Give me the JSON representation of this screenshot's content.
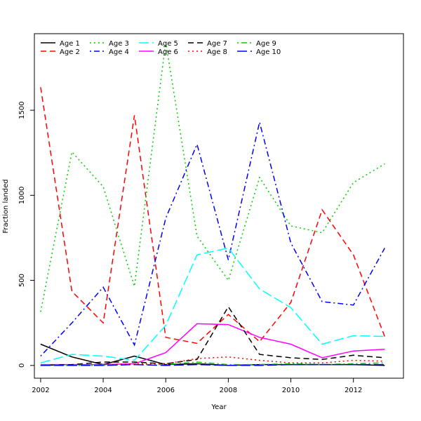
{
  "chart_data": {
    "type": "line",
    "title": "",
    "xlabel": "Year",
    "ylabel": "Fraction landed",
    "xlim": [
      2001.8,
      2013.6
    ],
    "ylim": [
      -75,
      1950
    ],
    "x_ticks": [
      2002,
      2004,
      2006,
      2008,
      2010,
      2012
    ],
    "y_ticks": [
      0,
      500,
      1000,
      1500
    ],
    "grid": false,
    "legend_position": "top-left",
    "x": [
      2002,
      2003,
      2004,
      2005,
      2006,
      2007,
      2008,
      2009,
      2010,
      2011,
      2012,
      2013
    ],
    "series": [
      {
        "name": "Age 1",
        "color": "#000000",
        "dash": "solid",
        "values": [
          125,
          50,
          5,
          55,
          5,
          10,
          0,
          5,
          5,
          5,
          5,
          0
        ]
      },
      {
        "name": "Age 2",
        "color": "#ff0000",
        "dash": "dashed",
        "values": [
          1635,
          435,
          250,
          1470,
          165,
          130,
          300,
          140,
          370,
          915,
          650,
          170
        ]
      },
      {
        "name": "Age 3",
        "color": "#00cd00",
        "dash": "dotted",
        "values": [
          315,
          1255,
          1050,
          465,
          1900,
          760,
          500,
          1105,
          820,
          780,
          1075,
          1185
        ]
      },
      {
        "name": "Age 4",
        "color": "#0000ff",
        "dash": "dotdash",
        "values": [
          55,
          250,
          460,
          120,
          865,
          1300,
          620,
          1430,
          720,
          375,
          355,
          690
        ]
      },
      {
        "name": "Age 5",
        "color": "#00ffff",
        "dash": "longdash",
        "values": [
          15,
          65,
          55,
          30,
          235,
          650,
          690,
          450,
          340,
          125,
          175,
          170
        ]
      },
      {
        "name": "Age 6",
        "color": "#ff00ff",
        "dash": "solid",
        "values": [
          5,
          5,
          5,
          10,
          75,
          245,
          240,
          165,
          125,
          45,
          85,
          95
        ]
      },
      {
        "name": "Age 7",
        "color": "#000000",
        "dash": "dashed",
        "values": [
          0,
          5,
          20,
          20,
          10,
          35,
          345,
          65,
          45,
          35,
          60,
          45
        ]
      },
      {
        "name": "Age 8",
        "color": "#ff0000",
        "dash": "dotted",
        "values": [
          0,
          0,
          5,
          10,
          10,
          40,
          50,
          30,
          15,
          15,
          30,
          25
        ]
      },
      {
        "name": "Age 9",
        "color": "#00cd00",
        "dash": "dotdash",
        "values": [
          0,
          0,
          0,
          5,
          5,
          20,
          5,
          5,
          10,
          5,
          10,
          15
        ]
      },
      {
        "name": "Age 10",
        "color": "#0000ff",
        "dash": "longdash",
        "values": [
          0,
          0,
          0,
          5,
          0,
          5,
          0,
          0,
          5,
          5,
          5,
          5
        ]
      }
    ]
  }
}
